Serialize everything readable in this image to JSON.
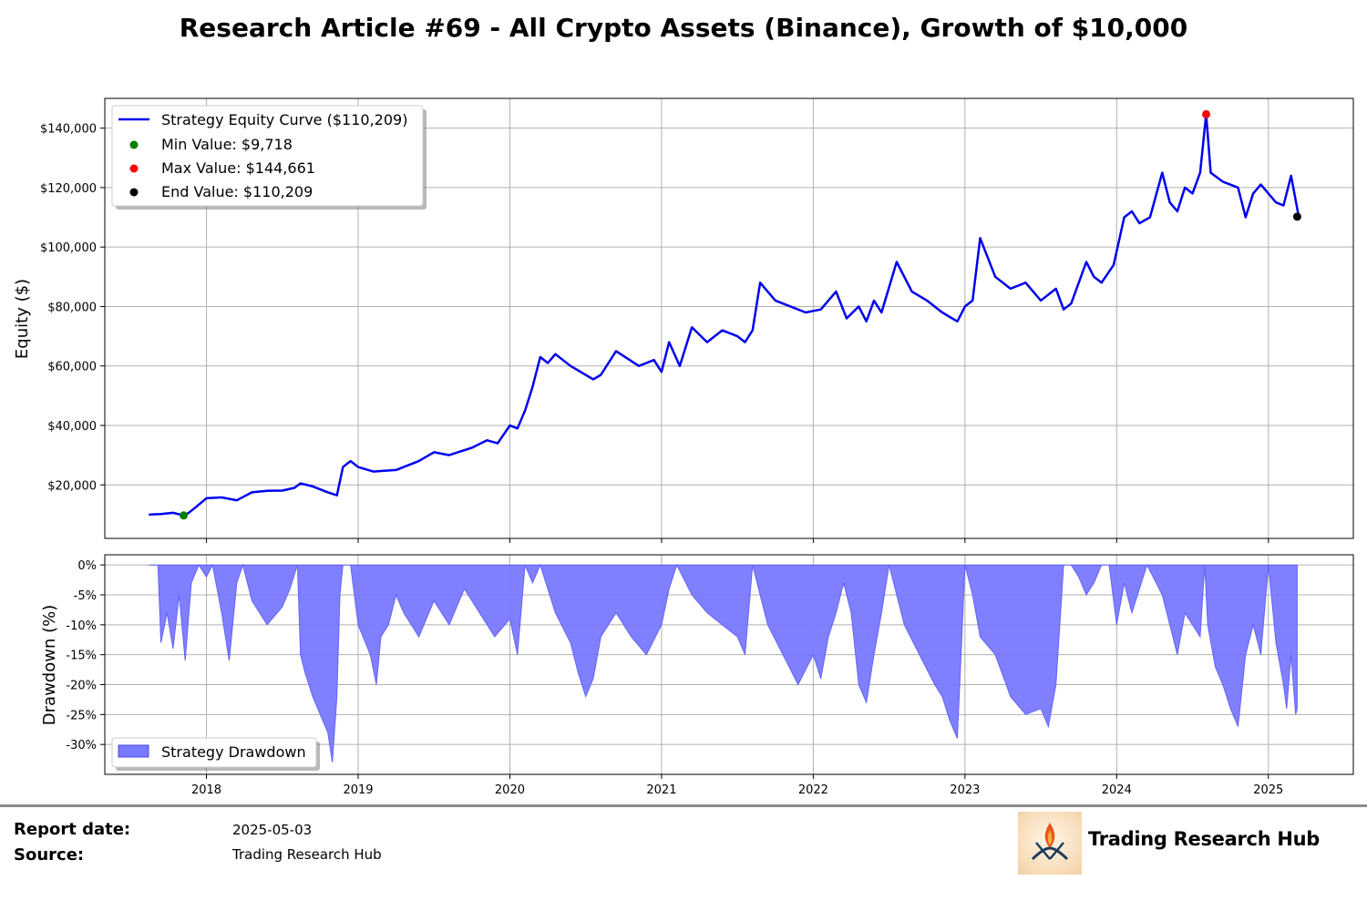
{
  "title": "Research Article #69 - All Crypto Assets (Binance), Growth of $10,000",
  "colors": {
    "equity_line": "#0000ee",
    "drawdown_fill": "#7a7aff",
    "min_marker": "#008000",
    "max_marker": "#ff0000",
    "end_marker": "#000000",
    "grid": "#b0b0b0"
  },
  "chart_data": [
    {
      "type": "line",
      "ylabel": "Equity ($)",
      "xlabel": "",
      "x_ticks": [
        "2018",
        "2019",
        "2020",
        "2021",
        "2022",
        "2023",
        "2024",
        "2025"
      ],
      "y_ticks": [
        "$20,000",
        "$40,000",
        "$60,000",
        "$80,000",
        "$100,000",
        "$120,000",
        "$140,000"
      ],
      "y_tick_values": [
        20000,
        40000,
        60000,
        80000,
        100000,
        120000,
        140000
      ],
      "xlim": [
        2017.33,
        2025.56
      ],
      "ylim": [
        2000,
        150000
      ],
      "grid": true,
      "legend_position": "top-left",
      "series": [
        {
          "name": "Strategy Equity Curve ($110,209)",
          "x": [
            2017.62,
            2017.7,
            2017.78,
            2017.85,
            2017.88,
            2017.93,
            2018.0,
            2018.1,
            2018.2,
            2018.3,
            2018.4,
            2018.5,
            2018.58,
            2018.62,
            2018.7,
            2018.8,
            2018.86,
            2018.9,
            2018.95,
            2019.0,
            2019.1,
            2019.25,
            2019.4,
            2019.5,
            2019.6,
            2019.75,
            2019.85,
            2019.92,
            2020.0,
            2020.05,
            2020.1,
            2020.15,
            2020.2,
            2020.25,
            2020.3,
            2020.4,
            2020.55,
            2020.6,
            2020.7,
            2020.85,
            2020.95,
            2021.0,
            2021.05,
            2021.12,
            2021.2,
            2021.3,
            2021.4,
            2021.5,
            2021.55,
            2021.6,
            2021.65,
            2021.75,
            2021.85,
            2021.95,
            2022.05,
            2022.15,
            2022.22,
            2022.3,
            2022.35,
            2022.4,
            2022.45,
            2022.55,
            2022.65,
            2022.75,
            2022.85,
            2022.95,
            2023.0,
            2023.05,
            2023.1,
            2023.2,
            2023.3,
            2023.4,
            2023.5,
            2023.6,
            2023.65,
            2023.7,
            2023.8,
            2023.85,
            2023.9,
            2023.98,
            2024.05,
            2024.1,
            2024.15,
            2024.22,
            2024.3,
            2024.35,
            2024.4,
            2024.45,
            2024.5,
            2024.55,
            2024.59,
            2024.62,
            2024.7,
            2024.8,
            2024.85,
            2024.9,
            2024.95,
            2025.0,
            2025.05,
            2025.1,
            2025.15,
            2025.2
          ],
          "y": [
            10000,
            10200,
            10600,
            9718,
            10500,
            12500,
            15500,
            15800,
            14800,
            17500,
            18000,
            18100,
            19000,
            20500,
            19500,
            17500,
            16500,
            26000,
            28000,
            26000,
            24500,
            25000,
            28000,
            31000,
            30000,
            32500,
            35000,
            34000,
            40000,
            39000,
            45000,
            53000,
            63000,
            61000,
            64000,
            60000,
            55500,
            57000,
            65000,
            60000,
            62000,
            58000,
            68000,
            60000,
            73000,
            68000,
            72000,
            70000,
            68000,
            72000,
            88000,
            82000,
            80000,
            78000,
            79000,
            85000,
            76000,
            80000,
            75000,
            82000,
            78000,
            95000,
            85000,
            82000,
            78000,
            75000,
            80000,
            82000,
            103000,
            90000,
            86000,
            88000,
            82000,
            86000,
            79000,
            81000,
            95000,
            90000,
            88000,
            94000,
            110000,
            112000,
            108000,
            110000,
            125000,
            115000,
            112000,
            120000,
            118000,
            125000,
            144661,
            125000,
            122000,
            120000,
            110000,
            118000,
            121000,
            118000,
            115000,
            114000,
            124000,
            110209
          ]
        }
      ],
      "markers": [
        {
          "name": "Min Value: $9,718",
          "x": 2017.85,
          "y": 9718
        },
        {
          "name": "Max Value: $144,661",
          "x": 2024.59,
          "y": 144661
        },
        {
          "name": "End Value: $110,209",
          "x": 2025.19,
          "y": 110209
        }
      ]
    },
    {
      "type": "area",
      "ylabel": "Drawdown (%)",
      "xlabel": "",
      "x_ticks": [
        "2018",
        "2019",
        "2020",
        "2021",
        "2022",
        "2023",
        "2024",
        "2025"
      ],
      "y_ticks": [
        "0%",
        "-5%",
        "-10%",
        "-15%",
        "-20%",
        "-25%",
        "-30%"
      ],
      "y_tick_values": [
        0,
        -5,
        -10,
        -15,
        -20,
        -25,
        -30
      ],
      "xlim": [
        2017.33,
        2025.56
      ],
      "ylim": [
        -35,
        1.7
      ],
      "grid": true,
      "legend_position": "bottom-left",
      "series": [
        {
          "name": "Strategy Drawdown",
          "x": [
            2017.62,
            2017.68,
            2017.7,
            2017.74,
            2017.78,
            2017.82,
            2017.86,
            2017.9,
            2017.95,
            2018.0,
            2018.04,
            2018.1,
            2018.15,
            2018.2,
            2018.24,
            2018.3,
            2018.4,
            2018.5,
            2018.55,
            2018.6,
            2018.62,
            2018.65,
            2018.7,
            2018.75,
            2018.8,
            2018.83,
            2018.86,
            2018.88,
            2018.9,
            2018.95,
            2019.0,
            2019.08,
            2019.12,
            2019.15,
            2019.2,
            2019.25,
            2019.3,
            2019.4,
            2019.5,
            2019.6,
            2019.7,
            2019.8,
            2019.9,
            2020.0,
            2020.05,
            2020.1,
            2020.15,
            2020.2,
            2020.3,
            2020.4,
            2020.45,
            2020.5,
            2020.55,
            2020.6,
            2020.7,
            2020.8,
            2020.9,
            2021.0,
            2021.05,
            2021.1,
            2021.2,
            2021.3,
            2021.4,
            2021.5,
            2021.55,
            2021.6,
            2021.7,
            2021.8,
            2021.9,
            2022.0,
            2022.05,
            2022.1,
            2022.15,
            2022.2,
            2022.25,
            2022.3,
            2022.35,
            2022.4,
            2022.45,
            2022.5,
            2022.6,
            2022.7,
            2022.8,
            2022.85,
            2022.9,
            2022.95,
            2023.0,
            2023.05,
            2023.1,
            2023.2,
            2023.3,
            2023.4,
            2023.5,
            2023.55,
            2023.6,
            2023.65,
            2023.7,
            2023.75,
            2023.8,
            2023.85,
            2023.9,
            2023.95,
            2024.0,
            2024.05,
            2024.1,
            2024.2,
            2024.3,
            2024.35,
            2024.4,
            2024.45,
            2024.5,
            2024.55,
            2024.58,
            2024.6,
            2024.65,
            2024.7,
            2024.75,
            2024.8,
            2024.85,
            2024.9,
            2024.95,
            2025.0,
            2025.05,
            2025.1,
            2025.12,
            2025.15,
            2025.18,
            2025.19
          ],
          "values": [
            0,
            0,
            -13,
            -8,
            -14,
            -5,
            -16,
            -3,
            0,
            -2,
            0,
            -8,
            -16,
            -3,
            0,
            -6,
            -10,
            -7,
            -4,
            0,
            -15,
            -18,
            -22,
            -25,
            -28,
            -33,
            -22,
            -5,
            0,
            0,
            -10,
            -15,
            -20,
            -12,
            -10,
            -5,
            -8,
            -12,
            -6,
            -10,
            -4,
            -8,
            -12,
            -9,
            -15,
            0,
            -3,
            0,
            -8,
            -13,
            -18,
            -22,
            -19,
            -12,
            -8,
            -12,
            -15,
            -10,
            -4,
            0,
            -5,
            -8,
            -10,
            -12,
            -15,
            0,
            -10,
            -15,
            -20,
            -15,
            -19,
            -12,
            -8,
            -3,
            -8,
            -20,
            -23,
            -15,
            -8,
            0,
            -10,
            -15,
            -20,
            -22,
            -26,
            -29,
            0,
            -5,
            -12,
            -15,
            -22,
            -25,
            -24,
            -27,
            -20,
            0,
            0,
            -2,
            -5,
            -3,
            0,
            0,
            -10,
            -3,
            -8,
            0,
            -5,
            -10,
            -15,
            -8,
            -10,
            -12,
            0,
            -10,
            -17,
            -20,
            -24,
            -27,
            -15,
            -10,
            -15,
            0,
            -13,
            -20,
            -24,
            -15,
            -25,
            -24
          ]
        }
      ]
    }
  ],
  "footer": {
    "report_date_label": "Report date:",
    "report_date_value": "2025-05-03",
    "source_label": "Source:",
    "source_value": "Trading Research Hub",
    "brand_name": "Trading Research Hub",
    "logo_icon": "flame-feather-logo-icon"
  }
}
